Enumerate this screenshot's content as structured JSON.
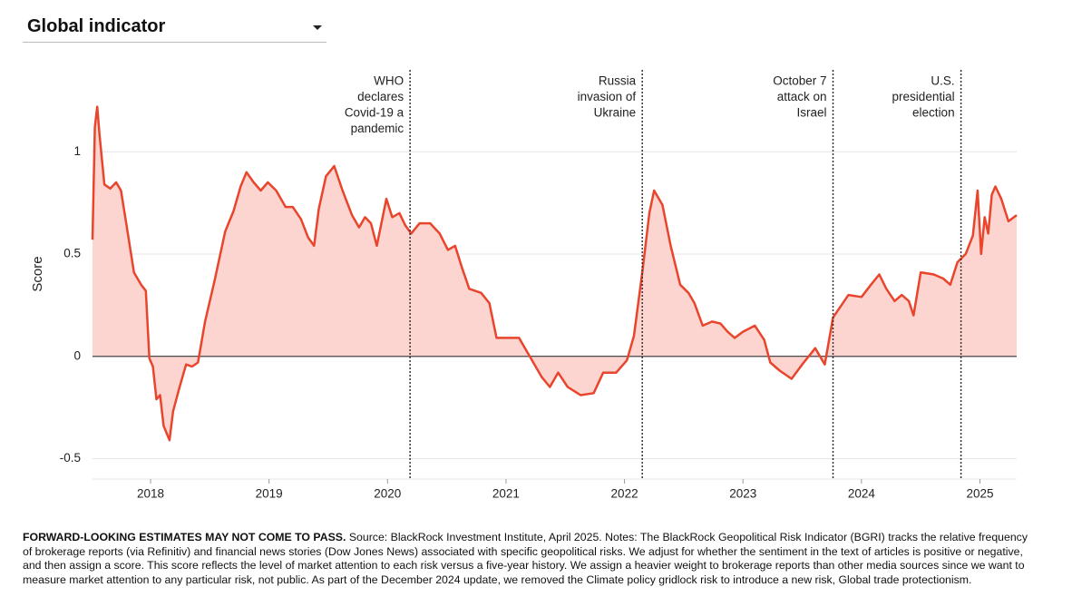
{
  "dropdown": {
    "label": "Global indicator"
  },
  "note": {
    "bold": "FORWARD-LOOKING ESTIMATES MAY NOT COME TO PASS.",
    "text": "Source: BlackRock Investment Institute, April 2025. Notes: The BlackRock Geopolitical Risk Indicator (BGRI) tracks the relative frequency of brokerage reports (via Refinitiv) and financial news stories (Dow Jones News) associated with specific geopolitical risks. We adjust for whether the sentiment in the text of articles is positive or negative, and then assign a score. This score reflects the level of market attention to each risk versus a five-year history. We assign a heavier weight to brokerage reports than other media sources since we want to measure market attention to any particular risk, not public. As part of the December 2024 update, we removed the Climate policy gridlock risk to introduce a new risk, Global trade protectionism."
  },
  "chart_data": {
    "type": "area",
    "ylabel": "Score",
    "color": "#e8452c",
    "fill": "#fdd5d0",
    "grid": true,
    "xlim": [
      2017.51,
      2025.31
    ],
    "xticks": [
      2018,
      2019,
      2020,
      2021,
      2022,
      2023,
      2024,
      2025
    ],
    "ylim": [
      -0.6,
      1.4
    ],
    "yticks": [
      -0.5,
      0,
      0.5,
      1
    ],
    "annotations": [
      {
        "x": 2020.19,
        "lines": [
          "WHO",
          "declares",
          "Covid-19 a",
          "pandemic"
        ]
      },
      {
        "x": 2022.15,
        "lines": [
          "Russia",
          "invasion of",
          "Ukraine"
        ]
      },
      {
        "x": 2023.76,
        "lines": [
          "October 7",
          "attack on",
          "Israel"
        ]
      },
      {
        "x": 2024.84,
        "lines": [
          "U.S.",
          "presidential",
          "election"
        ]
      }
    ],
    "x": [
      2017.51,
      2017.53,
      2017.55,
      2017.57,
      2017.61,
      2017.66,
      2017.71,
      2017.75,
      2017.8,
      2017.86,
      2017.92,
      2017.96,
      2017.99,
      2018.02,
      2018.05,
      2018.08,
      2018.11,
      2018.16,
      2018.19,
      2018.24,
      2018.3,
      2018.35,
      2018.4,
      2018.46,
      2018.54,
      2018.63,
      2018.7,
      2018.76,
      2018.81,
      2018.87,
      2018.93,
      2018.99,
      2019.06,
      2019.14,
      2019.2,
      2019.27,
      2019.33,
      2019.38,
      2019.42,
      2019.48,
      2019.55,
      2019.62,
      2019.7,
      2019.76,
      2019.81,
      2019.86,
      2019.91,
      2019.99,
      2020.04,
      2020.1,
      2020.15,
      2020.2,
      2020.27,
      2020.36,
      2020.44,
      2020.51,
      2020.57,
      2020.63,
      2020.69,
      2020.79,
      2020.86,
      2020.92,
      2021.02,
      2021.11,
      2021.21,
      2021.3,
      2021.37,
      2021.44,
      2021.52,
      2021.63,
      2021.74,
      2021.82,
      2021.93,
      2022.02,
      2022.08,
      2022.15,
      2022.21,
      2022.25,
      2022.32,
      2022.39,
      2022.47,
      2022.54,
      2022.59,
      2022.66,
      2022.74,
      2022.81,
      2022.87,
      2022.93,
      2023.0,
      2023.1,
      2023.18,
      2023.23,
      2023.31,
      2023.41,
      2023.5,
      2023.61,
      2023.69,
      2023.76,
      2023.89,
      2024.0,
      2024.08,
      2024.15,
      2024.21,
      2024.28,
      2024.34,
      2024.4,
      2024.44,
      2024.5,
      2024.61,
      2024.69,
      2024.75,
      2024.81,
      2024.88,
      2024.94,
      2024.98,
      2025.01,
      2025.04,
      2025.07,
      2025.1,
      2025.13,
      2025.18,
      2025.24,
      2025.31
    ],
    "values": [
      0.57,
      1.12,
      1.22,
      1.08,
      0.84,
      0.82,
      0.85,
      0.81,
      0.63,
      0.41,
      0.35,
      0.32,
      -0.01,
      -0.05,
      -0.21,
      -0.19,
      -0.34,
      -0.41,
      -0.27,
      -0.16,
      -0.04,
      -0.05,
      -0.03,
      0.17,
      0.37,
      0.61,
      0.71,
      0.83,
      0.9,
      0.85,
      0.81,
      0.85,
      0.81,
      0.73,
      0.73,
      0.67,
      0.58,
      0.54,
      0.72,
      0.88,
      0.93,
      0.81,
      0.69,
      0.63,
      0.68,
      0.65,
      0.54,
      0.77,
      0.68,
      0.7,
      0.64,
      0.6,
      0.65,
      0.65,
      0.6,
      0.52,
      0.54,
      0.43,
      0.33,
      0.31,
      0.26,
      0.09,
      0.09,
      0.09,
      -0.01,
      -0.1,
      -0.15,
      -0.08,
      -0.15,
      -0.19,
      -0.18,
      -0.08,
      -0.08,
      -0.02,
      0.1,
      0.41,
      0.7,
      0.81,
      0.74,
      0.54,
      0.35,
      0.31,
      0.26,
      0.15,
      0.17,
      0.16,
      0.12,
      0.09,
      0.12,
      0.15,
      0.08,
      -0.03,
      -0.07,
      -0.11,
      -0.04,
      0.04,
      -0.04,
      0.19,
      0.3,
      0.29,
      0.35,
      0.4,
      0.33,
      0.27,
      0.3,
      0.27,
      0.2,
      0.41,
      0.4,
      0.38,
      0.35,
      0.46,
      0.5,
      0.59,
      0.81,
      0.5,
      0.68,
      0.6,
      0.79,
      0.83,
      0.77,
      0.66,
      0.69
    ]
  }
}
